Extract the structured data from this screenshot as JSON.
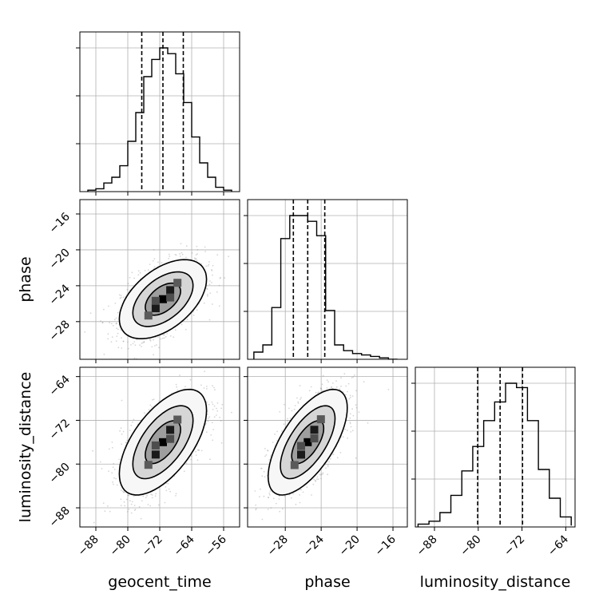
{
  "chart_data": {
    "type": "corner",
    "parameters": [
      "geocent_time",
      "phase",
      "luminosity_distance"
    ],
    "axis_labels": {
      "x": [
        "geocent_time",
        "phase",
        "luminosity_distance"
      ],
      "y": [
        "phase",
        "luminosity_distance"
      ]
    },
    "ranges": {
      "geocent_time": [
        -92,
        -52
      ],
      "phase": [
        -32.2,
        -14.4
      ],
      "luminosity_distance": [
        -91.5,
        -62.3
      ]
    },
    "ticks": {
      "geocent_time": [
        -88,
        -80,
        -72,
        -64,
        -56
      ],
      "phase": [
        -28,
        -24,
        -20,
        -16
      ],
      "luminosity_distance": [
        -88,
        -80,
        -72,
        -64
      ]
    },
    "tick_labels": {
      "geocent_time": [
        "−88",
        "−80",
        "−72",
        "−64",
        "−56"
      ],
      "phase": [
        "−28",
        "−24",
        "−20",
        "−16"
      ],
      "luminosity_distance": [
        "−88",
        "−80",
        "−72",
        "−64"
      ]
    },
    "quantiles": {
      "geocent_time": [
        -76.5,
        -71.2,
        -66.1
      ],
      "phase": [
        -27.1,
        -25.5,
        -23.6
      ],
      "luminosity_distance": [
        -80.1,
        -76.0,
        -71.9
      ]
    },
    "histograms": {
      "geocent_time": {
        "edges": [
          -90,
          -88,
          -86,
          -84,
          -82,
          -80,
          -78,
          -76,
          -74,
          -72,
          -70,
          -68,
          -66,
          -64,
          -62,
          -60,
          -58,
          -56,
          -54
        ],
        "counts": [
          1,
          2,
          6,
          10,
          18,
          35,
          55,
          80,
          92,
          100,
          96,
          82,
          62,
          38,
          20,
          10,
          3,
          1
        ]
      },
      "phase": {
        "edges": [
          -31.5,
          -30.5,
          -29.5,
          -28.5,
          -27.5,
          -26.5,
          -25.5,
          -24.5,
          -23.5,
          -22.5,
          -21.5,
          -20.5,
          -19.5,
          -18.5,
          -17.5,
          -16.5,
          -15.5
        ],
        "counts": [
          5,
          10,
          36,
          84,
          100,
          100,
          96,
          86,
          34,
          10,
          6,
          4,
          3,
          2,
          1,
          0
        ]
      },
      "luminosity_distance": {
        "edges": [
          -91,
          -89,
          -87,
          -85,
          -83,
          -81,
          -79,
          -77,
          -75,
          -73,
          -71,
          -69,
          -67,
          -65,
          -63
        ],
        "counts": [
          2,
          4,
          10,
          22,
          39,
          56,
          74,
          87,
          100,
          97,
          74,
          40,
          20,
          7,
          1
        ]
      }
    },
    "correlations": {
      "phase_vs_geocent_time": 0.5,
      "luminosity_distance_vs_geocent_time": 0.6,
      "luminosity_distance_vs_phase": 0.65
    },
    "grid": true
  }
}
